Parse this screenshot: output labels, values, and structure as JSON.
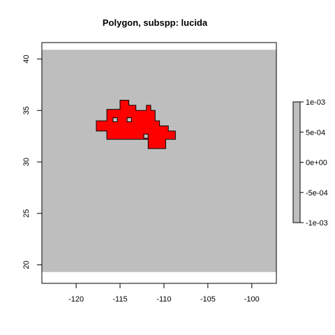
{
  "chart_data": {
    "type": "map",
    "title": "Polygon, subspp: lucida",
    "xlabel": "",
    "ylabel": "",
    "xlim": [
      -123.9,
      -97.2
    ],
    "ylim": [
      18.2,
      41.6
    ],
    "x_ticks": [
      -120,
      -115,
      -110,
      -105,
      -100
    ],
    "x_tick_labels": [
      "-120",
      "-115",
      "-110",
      "-105",
      "-100"
    ],
    "y_ticks": [
      20,
      25,
      30,
      35,
      40
    ],
    "y_tick_labels": [
      "20",
      "25",
      "30",
      "35",
      "40"
    ],
    "raster_extent": {
      "xmin": -123.9,
      "xmax": -97.2,
      "ymin": 19.3,
      "ymax": 40.9
    },
    "background_color": "#bebebe",
    "polygon_fill": "#ff0000",
    "polygon_border": "#000000",
    "polygon": [
      [
        -116.5,
        35.1
      ],
      [
        -115.0,
        35.1
      ],
      [
        -115.0,
        36.0
      ],
      [
        -114.0,
        36.0
      ],
      [
        -114.0,
        35.5
      ],
      [
        -113.2,
        35.5
      ],
      [
        -113.2,
        35.0
      ],
      [
        -112.0,
        35.0
      ],
      [
        -112.0,
        35.5
      ],
      [
        -111.5,
        35.5
      ],
      [
        -111.5,
        35.0
      ],
      [
        -111.0,
        35.0
      ],
      [
        -111.0,
        34.0
      ],
      [
        -110.5,
        34.0
      ],
      [
        -110.5,
        33.5
      ],
      [
        -109.5,
        33.5
      ],
      [
        -109.5,
        33.0
      ],
      [
        -108.7,
        33.0
      ],
      [
        -108.7,
        32.2
      ],
      [
        -109.8,
        32.2
      ],
      [
        -109.8,
        31.3
      ],
      [
        -111.8,
        31.3
      ],
      [
        -111.8,
        32.2
      ],
      [
        -116.5,
        32.2
      ],
      [
        -116.5,
        33.0
      ],
      [
        -117.7,
        33.0
      ],
      [
        -117.7,
        34.0
      ],
      [
        -116.5,
        34.0
      ]
    ],
    "holes": [
      [
        [
          -115.8,
          34.3
        ],
        [
          -115.3,
          34.3
        ],
        [
          -115.3,
          33.9
        ],
        [
          -115.8,
          33.9
        ]
      ],
      [
        [
          -114.2,
          34.3
        ],
        [
          -113.7,
          34.3
        ],
        [
          -113.7,
          33.9
        ],
        [
          -114.2,
          33.9
        ]
      ],
      [
        [
          -112.3,
          32.7
        ],
        [
          -111.8,
          32.7
        ],
        [
          -111.8,
          32.3
        ],
        [
          -112.3,
          32.3
        ]
      ]
    ],
    "legend": {
      "placement": "right",
      "ticks": [
        0.001,
        0.0005,
        0,
        -0.0005,
        -0.001
      ],
      "tick_labels": [
        "1e-03",
        "5e-04",
        "0e+00",
        "-5e-04",
        "-1e-03"
      ],
      "fill": "#bebebe"
    }
  }
}
